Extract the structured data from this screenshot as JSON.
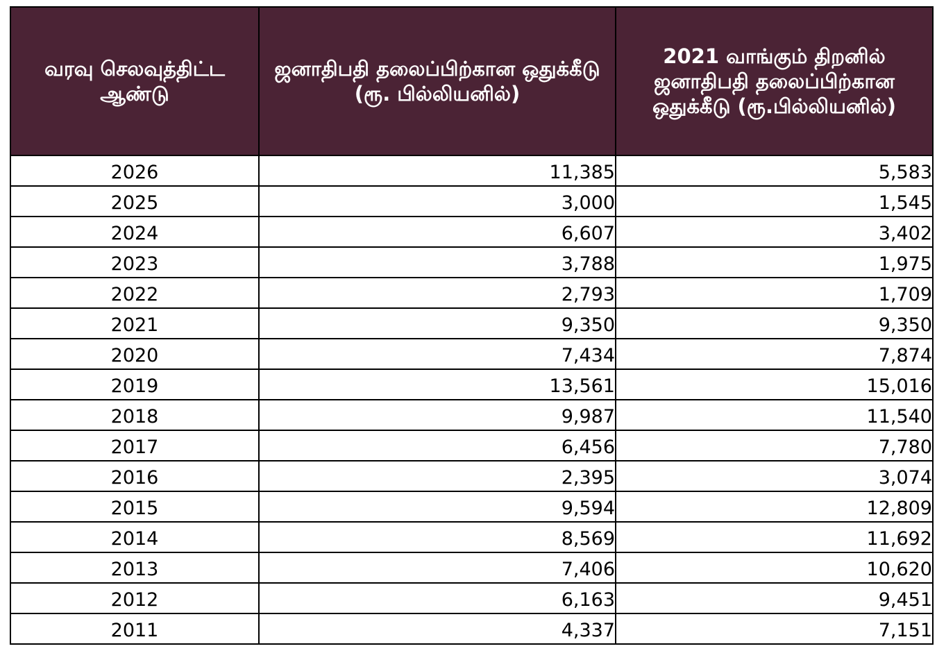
{
  "table": {
    "headers": [
      "வரவு செலவுத்திட்ட ஆண்டு",
      "ஜனாதிபதி தலைப்பிற்கான ஒதுக்கீடு (ரூ. பில்லியனில்)",
      "2021 வாங்கும் திறனில் ஜனாதிபதி தலைப்பிற்கான ஒதுக்கீடு (ரூ.பில்லியனில்)"
    ],
    "rows": [
      [
        "2026",
        "11,385",
        "5,583"
      ],
      [
        "2025",
        "3,000",
        "1,545"
      ],
      [
        "2024",
        "6,607",
        "3,402"
      ],
      [
        "2023",
        "3,788",
        "1,975"
      ],
      [
        "2022",
        "2,793",
        "1,709"
      ],
      [
        "2021",
        "9,350",
        "9,350"
      ],
      [
        "2020",
        "7,434",
        "7,874"
      ],
      [
        "2019",
        "13,561",
        "15,016"
      ],
      [
        "2018",
        "9,987",
        "11,540"
      ],
      [
        "2017",
        "6,456",
        "7,780"
      ],
      [
        "2016",
        "2,395",
        "3,074"
      ],
      [
        "2015",
        "9,594",
        "12,809"
      ],
      [
        "2014",
        "8,569",
        "11,692"
      ],
      [
        "2013",
        "7,406",
        "10,620"
      ],
      [
        "2012",
        "6,163",
        "9,451"
      ],
      [
        "2011",
        "4,337",
        "7,151"
      ]
    ]
  },
  "colors": {
    "header_background": "#4b2335",
    "header_text": "#ffffff",
    "border": "#000000"
  }
}
